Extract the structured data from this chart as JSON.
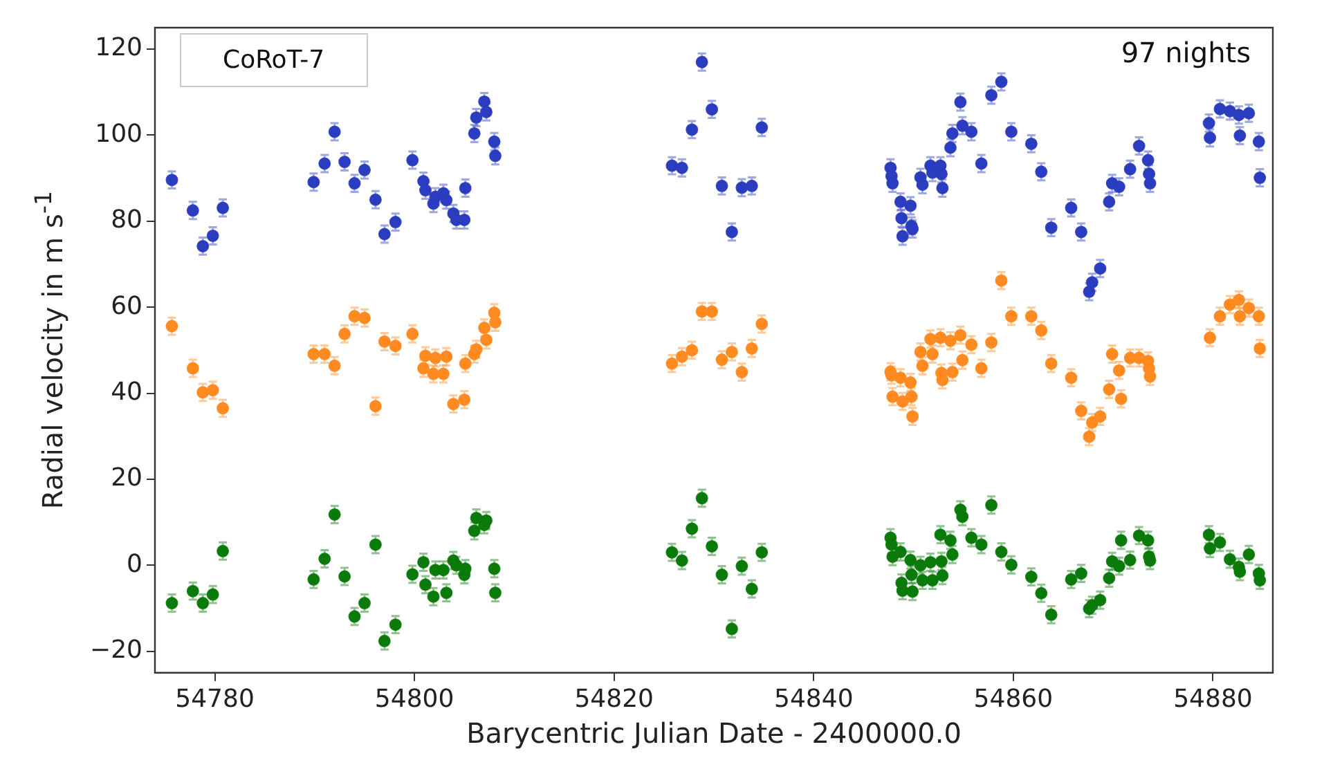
{
  "chart_data": {
    "type": "scatter",
    "xlabel": "Barycentric Julian Date - 2400000.0",
    "ylabel": "Radial velocity in m s$^{-1}$",
    "annotations": [
      "CoRoT-7",
      "97 nights"
    ],
    "xlim": [
      54774,
      54886
    ],
    "xticks": [
      54780,
      54800,
      54820,
      54840,
      54860,
      54880
    ],
    "ylim": [
      -25,
      125
    ],
    "yticks": [
      {
        "value": -20,
        "label": "−20"
      },
      0,
      20,
      40,
      60,
      80,
      100,
      120
    ],
    "marker": "circle",
    "legend": false,
    "series": [
      {
        "color": "#2a3cbf",
        "x": [
          54775.7,
          54777.8,
          54778.8,
          54779.8,
          54780.8,
          54789.9,
          54791.0,
          54792.0,
          54793.0,
          54794.0,
          54795.0,
          54796.1,
          54797.0,
          54798.1,
          54799.8,
          54800.9,
          54801.1,
          54801.9,
          54802.1,
          54802.9,
          54803.2,
          54803.9,
          54804.2,
          54805.0,
          54805.1,
          54806.0,
          54806.2,
          54807.0,
          54807.2,
          54808.0,
          54808.1,
          54825.8,
          54826.8,
          54827.8,
          54828.8,
          54829.8,
          54830.8,
          54831.8,
          54832.8,
          54833.8,
          54834.8,
          54847.7,
          54847.8,
          54847.9,
          54848.7,
          54848.8,
          54848.9,
          54849.7,
          54849.8,
          54849.9,
          54850.7,
          54850.9,
          54851.7,
          54851.9,
          54852.7,
          54852.8,
          54852.9,
          54853.7,
          54853.9,
          54854.7,
          54854.9,
          54855.8,
          54856.8,
          54857.8,
          54858.8,
          54859.8,
          54861.8,
          54862.8,
          54863.8,
          54865.8,
          54866.8,
          54867.6,
          54867.9,
          54868.7,
          54869.6,
          54869.9,
          54870.6,
          54871.7,
          54872.6,
          54873.5,
          54873.6,
          54873.7,
          54879.6,
          54879.7,
          54880.7,
          54881.7,
          54882.6,
          54882.7,
          54883.6,
          54884.6,
          54884.7
        ],
        "values": [
          89.6,
          82.5,
          74.2,
          76.6,
          83.1,
          89.1,
          93.4,
          100.8,
          93.8,
          88.8,
          91.9,
          85.0,
          77.0,
          79.8,
          94.2,
          89.3,
          87.2,
          84.1,
          85.7,
          86.5,
          84.9,
          81.8,
          80.3,
          80.3,
          87.7,
          100.4,
          104.1,
          107.8,
          105.4,
          98.5,
          95.2,
          92.9,
          92.4,
          101.3,
          117.0,
          106.0,
          88.2,
          77.5,
          87.8,
          88.2,
          101.8,
          92.4,
          90.5,
          88.8,
          84.5,
          80.7,
          76.5,
          83.6,
          78.9,
          78.2,
          90.2,
          88.5,
          92.9,
          91.3,
          92.9,
          91.0,
          87.7,
          97.1,
          100.4,
          107.7,
          102.2,
          100.8,
          93.4,
          109.3,
          112.4,
          100.8,
          98.0,
          91.5,
          78.5,
          83.1,
          77.5,
          63.6,
          65.8,
          69.0,
          84.5,
          88.8,
          88.0,
          92.1,
          97.5,
          94.2,
          91.0,
          88.8,
          102.8,
          99.4,
          106.1,
          105.6,
          104.7,
          99.9,
          105.1,
          98.5,
          90.1
        ],
        "errors": [
          2,
          2,
          2,
          2,
          2,
          2,
          2,
          2,
          2,
          2,
          2,
          2,
          2,
          2,
          2,
          2,
          2,
          2,
          2,
          2,
          2,
          2,
          2,
          2,
          2,
          2,
          2,
          2,
          2,
          2,
          2,
          2,
          2,
          2,
          2,
          2,
          2,
          2,
          2,
          2,
          2,
          2,
          2,
          2,
          2,
          2,
          2,
          2,
          2,
          2,
          2,
          2,
          2,
          2,
          2,
          2,
          2,
          2,
          2,
          2,
          2,
          2,
          2,
          2,
          2,
          2,
          2,
          2,
          2,
          2,
          2,
          2,
          2,
          2,
          2,
          2,
          2,
          2,
          2,
          2,
          2,
          2,
          2,
          2,
          2,
          2,
          2,
          2,
          2,
          2,
          2
        ]
      },
      {
        "color": "#ff8a1f",
        "x": [
          54775.7,
          54777.8,
          54778.8,
          54779.8,
          54780.8,
          54789.9,
          54791.0,
          54792.0,
          54793.0,
          54794.0,
          54795.0,
          54796.1,
          54797.0,
          54798.1,
          54799.8,
          54800.9,
          54801.1,
          54801.9,
          54802.1,
          54802.9,
          54803.2,
          54803.9,
          54805.0,
          54805.1,
          54806.0,
          54806.2,
          54807.0,
          54807.2,
          54808.0,
          54808.1,
          54825.8,
          54826.8,
          54827.8,
          54828.8,
          54829.8,
          54830.8,
          54831.8,
          54832.8,
          54833.8,
          54834.8,
          54847.7,
          54847.8,
          54847.9,
          54848.7,
          54848.9,
          54849.7,
          54849.8,
          54849.9,
          54850.7,
          54850.9,
          54851.7,
          54851.9,
          54852.7,
          54852.8,
          54852.9,
          54853.7,
          54853.9,
          54854.7,
          54854.9,
          54855.8,
          54856.8,
          54857.8,
          54858.8,
          54859.8,
          54861.8,
          54862.8,
          54863.8,
          54865.8,
          54866.8,
          54867.6,
          54867.9,
          54868.7,
          54869.6,
          54869.9,
          54870.6,
          54870.8,
          54871.7,
          54872.6,
          54873.5,
          54873.6,
          54873.7,
          54879.7,
          54880.7,
          54881.7,
          54882.6,
          54882.7,
          54883.6,
          54884.6,
          54884.7
        ],
        "values": [
          55.6,
          45.8,
          40.2,
          40.7,
          36.5,
          49.1,
          49.1,
          46.4,
          53.8,
          57.9,
          57.5,
          37.0,
          52.0,
          51.0,
          53.8,
          45.8,
          48.7,
          44.5,
          48.2,
          44.5,
          48.5,
          37.5,
          38.5,
          46.9,
          49.1,
          50.2,
          55.2,
          52.4,
          58.7,
          56.5,
          46.9,
          48.5,
          50.0,
          59.0,
          59.0,
          47.8,
          49.6,
          44.9,
          50.4,
          56.1,
          45.0,
          44.2,
          39.2,
          43.6,
          38.1,
          42.5,
          39.2,
          34.6,
          49.6,
          46.4,
          52.6,
          49.1,
          52.9,
          44.7,
          43.1,
          52.2,
          44.9,
          53.5,
          47.7,
          51.3,
          45.8,
          51.8,
          66.2,
          57.9,
          57.9,
          54.6,
          46.9,
          43.6,
          35.9,
          29.9,
          33.2,
          34.6,
          40.9,
          49.1,
          45.3,
          38.7,
          48.2,
          48.2,
          47.5,
          45.8,
          43.9,
          52.9,
          57.9,
          60.6,
          61.7,
          57.9,
          59.8,
          57.9,
          50.4
        ],
        "errors": [
          2,
          2,
          2,
          2,
          2,
          2,
          2,
          2,
          2,
          2,
          2,
          2,
          2,
          2,
          2,
          2,
          2,
          2,
          2,
          2,
          2,
          2,
          2,
          2,
          2,
          2,
          2,
          2,
          2,
          2,
          2,
          2,
          2,
          2,
          2,
          2,
          2,
          2,
          2,
          2,
          2,
          2,
          2,
          2,
          2,
          2,
          2,
          2,
          2,
          2,
          2,
          2,
          2,
          2,
          2,
          2,
          2,
          2,
          2,
          2,
          2,
          2,
          2,
          2,
          2,
          2,
          2,
          2,
          2,
          2,
          2,
          2,
          2,
          2,
          2,
          2,
          2,
          2,
          2,
          2,
          2,
          2,
          2,
          2,
          2,
          2,
          2,
          2,
          2
        ]
      },
      {
        "color": "#0a7a0a",
        "x": [
          54775.7,
          54777.8,
          54778.8,
          54779.8,
          54780.8,
          54789.9,
          54791.0,
          54792.0,
          54793.0,
          54794.0,
          54795.0,
          54796.1,
          54797.0,
          54798.1,
          54799.8,
          54800.9,
          54801.1,
          54801.9,
          54802.1,
          54802.9,
          54803.2,
          54803.9,
          54804.2,
          54805.0,
          54805.1,
          54806.0,
          54806.2,
          54807.0,
          54807.2,
          54808.0,
          54808.1,
          54825.8,
          54826.8,
          54827.8,
          54828.8,
          54829.8,
          54830.8,
          54831.8,
          54832.8,
          54833.8,
          54834.8,
          54847.7,
          54847.8,
          54847.9,
          54848.7,
          54848.8,
          54848.9,
          54849.7,
          54849.8,
          54849.9,
          54850.7,
          54850.9,
          54851.7,
          54851.9,
          54852.7,
          54852.8,
          54852.9,
          54853.7,
          54853.9,
          54854.7,
          54854.9,
          54855.8,
          54856.8,
          54857.8,
          54858.8,
          54859.8,
          54861.8,
          54862.8,
          54863.8,
          54865.8,
          54866.8,
          54867.6,
          54867.9,
          54868.7,
          54869.6,
          54869.9,
          54870.6,
          54870.8,
          54871.7,
          54872.6,
          54873.5,
          54873.6,
          54873.7,
          54879.6,
          54879.7,
          54880.7,
          54881.7,
          54882.6,
          54882.7,
          54883.6,
          54884.6,
          54884.7
        ],
        "values": [
          -8.8,
          -6.0,
          -8.8,
          -6.8,
          3.3,
          -3.3,
          1.5,
          11.8,
          -2.6,
          -11.9,
          -8.8,
          4.8,
          -17.6,
          -13.8,
          -2.1,
          0.7,
          -4.5,
          -7.3,
          -1.1,
          -1.1,
          -6.4,
          1.1,
          0,
          -2.2,
          -0.8,
          8.0,
          11.0,
          9.4,
          10.4,
          -0.8,
          -6.4,
          3.0,
          1.1,
          8.5,
          15.6,
          4.4,
          -2.2,
          -14.8,
          -0.2,
          -5.5,
          3.0,
          6.4,
          4.8,
          2.0,
          3.1,
          -4.1,
          -5.9,
          1.2,
          -2.2,
          -6.1,
          0,
          -3.5,
          0.7,
          -3.5,
          7.1,
          0.9,
          -2.4,
          5.8,
          2.5,
          12.9,
          11.3,
          6.4,
          4.8,
          14.0,
          3.1,
          0.1,
          -2.7,
          -6.5,
          -11.5,
          -3.3,
          -1.9,
          -10.1,
          -9.3,
          -8.1,
          -3.0,
          0.9,
          -0.2,
          5.8,
          1.2,
          6.9,
          5.8,
          2.0,
          1.1,
          7.1,
          3.9,
          5.3,
          1.4,
          -0.4,
          -1.5,
          2.5,
          -1.9,
          -3.5
        ],
        "errors": [
          2,
          2,
          2,
          2,
          2,
          2,
          2,
          2,
          2,
          2,
          2,
          2,
          2,
          2,
          2,
          2,
          2,
          2,
          2,
          2,
          2,
          2,
          2,
          2,
          2,
          2,
          2,
          2,
          2,
          2,
          2,
          2,
          2,
          2,
          2,
          2,
          2,
          2,
          2,
          2,
          2,
          2,
          2,
          2,
          2,
          2,
          2,
          2,
          2,
          2,
          2,
          2,
          2,
          2,
          2,
          2,
          2,
          2,
          2,
          2,
          2,
          2,
          2,
          2,
          2,
          2,
          2,
          2,
          2,
          2,
          2,
          2,
          2,
          2,
          2,
          2,
          2,
          2,
          2,
          2,
          2,
          2,
          2,
          2,
          2,
          2,
          2,
          2,
          2,
          2,
          2,
          2
        ]
      }
    ]
  }
}
